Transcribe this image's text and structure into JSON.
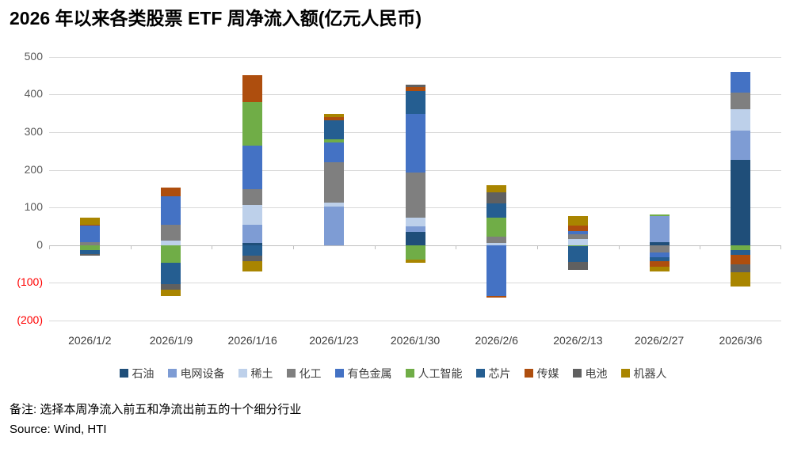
{
  "title": "2026 年以来各类股票 ETF 周净流入额(亿元人民币)",
  "footer": {
    "note": "备注: 选择本周净流入前五和净流出前五的十个细分行业",
    "source": "Source: Wind, HTI"
  },
  "colors": {
    "grid": "#D9D9D9",
    "axis": "#BFBFBF",
    "tick_text": "#595959",
    "negative_tick_text": "#FF0000",
    "label_text": "#404040"
  },
  "chart_data": {
    "type": "bar",
    "stacked": true,
    "title": "2026 年以来各类股票 ETF 周净流入额(亿元人民币)",
    "unit": "亿元人民币",
    "grid": true,
    "legend_position": "bottom",
    "categories": [
      "2026/1/2",
      "2026/1/9",
      "2026/1/16",
      "2026/1/23",
      "2026/1/30",
      "2026/2/6",
      "2026/2/13",
      "2026/2/27",
      "2026/3/6"
    ],
    "y_axis": {
      "min": -200,
      "max": 500,
      "ticks": [
        {
          "label": "500",
          "value": 500,
          "negative": false
        },
        {
          "label": "400",
          "value": 400,
          "negative": false
        },
        {
          "label": "300",
          "value": 300,
          "negative": false
        },
        {
          "label": "200",
          "value": 200,
          "negative": false
        },
        {
          "label": "100",
          "value": 100,
          "negative": false
        },
        {
          "label": "0",
          "value": 0,
          "negative": false
        },
        {
          "label": "(100)",
          "value": -100,
          "negative": true
        },
        {
          "label": "(200)",
          "value": -200,
          "negative": true
        }
      ]
    },
    "series": [
      {
        "name": "石油",
        "color": "#1F4E79",
        "values": [
          0,
          0,
          5,
          0,
          35,
          0,
          0,
          8,
          226
        ]
      },
      {
        "name": "电网设备",
        "color": "#7E9CD4",
        "values": [
          0,
          0,
          49,
          102,
          14,
          0,
          0,
          70,
          79
        ]
      },
      {
        "name": "稀土",
        "color": "#BDD0EA",
        "values": [
          0,
          13,
          53,
          11,
          25,
          5,
          16,
          0,
          55
        ]
      },
      {
        "name": "化工",
        "color": "#7F7F7F",
        "values": [
          7,
          41,
          42,
          107,
          119,
          17,
          13,
          -20,
          45
        ]
      },
      {
        "name": "有色金属",
        "color": "#4472C4",
        "values": [
          44,
          76,
          116,
          53,
          155,
          -135,
          8,
          -12,
          55
        ]
      },
      {
        "name": "人工智能",
        "color": "#70AD47",
        "values": [
          -14,
          -46,
          114,
          9,
          -39,
          50,
          -3,
          4,
          -14
        ]
      },
      {
        "name": "芯片",
        "color": "#255E91",
        "values": [
          -10,
          -58,
          -28,
          50,
          62,
          38,
          -42,
          -11,
          -12
        ]
      },
      {
        "name": "传媒",
        "color": "#AE4E0E",
        "values": [
          4,
          22,
          73,
          9,
          10,
          -5,
          14,
          -15,
          -24
        ]
      },
      {
        "name": "电池",
        "color": "#606060",
        "values": [
          -4,
          -14,
          -14,
          0,
          7,
          30,
          -20,
          0,
          -21
        ]
      },
      {
        "name": "机器人",
        "color": "#A98500",
        "values": [
          17,
          -18,
          -27,
          8,
          -7,
          20,
          26,
          -11,
          -39
        ]
      }
    ]
  }
}
